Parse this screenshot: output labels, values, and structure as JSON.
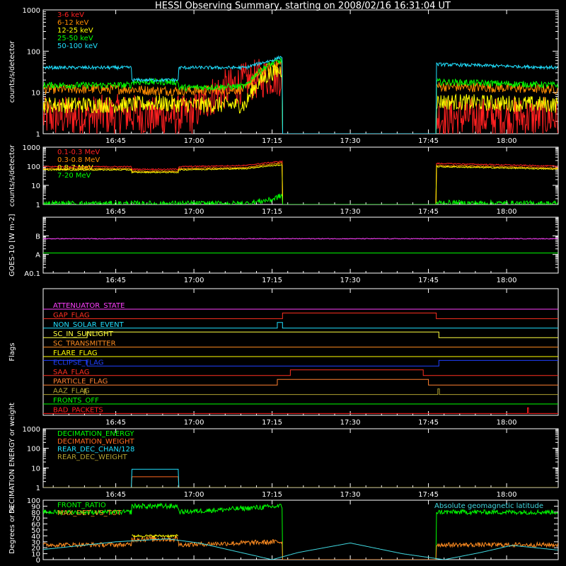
{
  "chart_data": {
    "type": "line",
    "title": "HESSI Observing Summary, starting on 2008/02/16 16:31:04 UT",
    "time_axis": {
      "start": "16:31:04",
      "end": "18:10:00",
      "tick_labels": [
        "16:45",
        "17:00",
        "17:15",
        "17:30",
        "17:45",
        "18:00"
      ],
      "tick_times_min": [
        45,
        60,
        75,
        90,
        105,
        120
      ]
    },
    "panels": [
      {
        "id": "rates-low",
        "type": "line",
        "ylabel": "counts/s/detector",
        "yscale": "log",
        "ylim": [
          1,
          1000
        ],
        "yticks": [
          "1",
          "10",
          "100",
          "1000"
        ],
        "series": [
          {
            "name": "3-6 keV",
            "color": "#ff2020",
            "points": [
              [
                31,
                2.5
              ],
              [
                48,
                3
              ],
              [
                52,
                2.5
              ],
              [
                60,
                3
              ],
              [
                75,
                25
              ],
              [
                77,
                25
              ],
              [
                77.1,
                1
              ],
              [
                106.5,
                1
              ],
              [
                106.6,
                2.5
              ],
              [
                130,
                2.5
              ]
            ],
            "noise": 0.5
          },
          {
            "name": "6-12 keV",
            "color": "#ff8c00",
            "points": [
              [
                31,
                12
              ],
              [
                48,
                12
              ],
              [
                52,
                11
              ],
              [
                60,
                11
              ],
              [
                70,
                12
              ],
              [
                75,
                45
              ],
              [
                77,
                50
              ],
              [
                77.1,
                1
              ],
              [
                106.5,
                1
              ],
              [
                106.6,
                14
              ],
              [
                130,
                12
              ]
            ],
            "noise": 0.12
          },
          {
            "name": "12-25 keV",
            "color": "#ffff00",
            "points": [
              [
                31,
                5
              ],
              [
                48,
                5
              ],
              [
                52,
                5.5
              ],
              [
                60,
                5
              ],
              [
                70,
                5
              ],
              [
                75,
                30
              ],
              [
                77,
                35
              ],
              [
                77.1,
                1
              ],
              [
                106.5,
                1
              ],
              [
                106.6,
                6
              ],
              [
                130,
                5
              ]
            ],
            "noise": 0.2
          },
          {
            "name": "25-50 keV",
            "color": "#00ff00",
            "points": [
              [
                31,
                15
              ],
              [
                48,
                15
              ],
              [
                48.1,
                18
              ],
              [
                57,
                18
              ],
              [
                57.1,
                13
              ],
              [
                70,
                14
              ],
              [
                75,
                50
              ],
              [
                77,
                60
              ],
              [
                77.1,
                1
              ],
              [
                106.5,
                1
              ],
              [
                106.6,
                18
              ],
              [
                130,
                15
              ]
            ],
            "noise": 0.08
          },
          {
            "name": "50-100 keV",
            "color": "#20e0ff",
            "points": [
              [
                31,
                40
              ],
              [
                48,
                40
              ],
              [
                48.1,
                20
              ],
              [
                57,
                20
              ],
              [
                57.1,
                40
              ],
              [
                70,
                40
              ],
              [
                75,
                60
              ],
              [
                77,
                75
              ],
              [
                77.1,
                1
              ],
              [
                106.5,
                1
              ],
              [
                106.6,
                48
              ],
              [
                130,
                40
              ]
            ],
            "noise": 0.04
          }
        ]
      },
      {
        "id": "rates-high",
        "type": "line",
        "ylabel": "counts/s/detector",
        "yscale": "log",
        "ylim": [
          1,
          1000
        ],
        "yticks": [
          "1",
          "10",
          "100",
          "1000"
        ],
        "series": [
          {
            "name": "0.1-0.3 MeV",
            "color": "#ff2020",
            "points": [
              [
                31,
                95
              ],
              [
                48,
                95
              ],
              [
                48.1,
                70
              ],
              [
                57,
                70
              ],
              [
                57.1,
                95
              ],
              [
                70,
                110
              ],
              [
                77,
                180
              ],
              [
                77.1,
                1
              ],
              [
                106.5,
                1
              ],
              [
                106.6,
                140
              ],
              [
                130,
                100
              ]
            ],
            "noise": 0.03
          },
          {
            "name": "0.3-0.8 MeV",
            "color": "#ff8c00",
            "points": [
              [
                31,
                75
              ],
              [
                48,
                75
              ],
              [
                48.1,
                55
              ],
              [
                57,
                55
              ],
              [
                57.1,
                75
              ],
              [
                70,
                85
              ],
              [
                77,
                150
              ],
              [
                77.1,
                1
              ],
              [
                106.5,
                1
              ],
              [
                106.6,
                110
              ],
              [
                130,
                80
              ]
            ],
            "noise": 0.03
          },
          {
            "name": "0.8-7 MeV",
            "color": "#ffff00",
            "points": [
              [
                31,
                65
              ],
              [
                48,
                65
              ],
              [
                48.1,
                48
              ],
              [
                57,
                48
              ],
              [
                57.1,
                65
              ],
              [
                70,
                75
              ],
              [
                77,
                120
              ],
              [
                77.1,
                1
              ],
              [
                106.5,
                1
              ],
              [
                106.6,
                95
              ],
              [
                130,
                70
              ]
            ],
            "noise": 0.03
          },
          {
            "name": "7-20 MeV",
            "color": "#00ff00",
            "points": [
              [
                31,
                1.1
              ],
              [
                70,
                1.1
              ],
              [
                75,
                1.8
              ],
              [
                77,
                3
              ],
              [
                77.1,
                1
              ],
              [
                106.5,
                1
              ],
              [
                106.6,
                1.2
              ],
              [
                130,
                1.1
              ]
            ],
            "noise": 0.15
          }
        ]
      },
      {
        "id": "goes",
        "type": "line",
        "ylabel": "GOES-10 [W m-2]",
        "yscale": "log",
        "ylim": [
          1e-09,
          1e-06
        ],
        "yticks": [
          "A0.1",
          "A",
          "B"
        ],
        "series": [
          {
            "name": "",
            "color": "#ff40ff",
            "points": [
              [
                31,
                7e-08
              ],
              [
                130,
                7e-08
              ]
            ],
            "noise": 0.02
          },
          {
            "name": "",
            "color": "#00ff00",
            "points": [
              [
                31,
                1.2e-08
              ],
              [
                130,
                1.2e-08
              ]
            ],
            "noise": 0
          }
        ]
      },
      {
        "id": "flags",
        "type": "flags",
        "ylabel": "Flags",
        "flags": [
          {
            "name": "ATTENUATOR_STATE",
            "color": "#ff40ff",
            "on": []
          },
          {
            "name": "GAP_FLAG",
            "color": "#ff3020",
            "on": [
              [
                77,
                106.5
              ]
            ]
          },
          {
            "name": "NON_SOLAR_EVENT",
            "color": "#20e0ff",
            "on": [
              [
                76,
                77
              ]
            ]
          },
          {
            "name": "SC_IN_SUNLIGHT",
            "color": "#ffff40",
            "on": [
              [
                39.5,
                107
              ]
            ]
          },
          {
            "name": "SC_TRANSMITTER",
            "color": "#ff8c20",
            "on": []
          },
          {
            "name": "FLARE_FLAG",
            "color": "#ffff00",
            "on": []
          },
          {
            "name": "ECLIPSE_FLAG",
            "color": "#2040ff",
            "on": [
              [
                31,
                39.5
              ],
              [
                107,
                130
              ]
            ]
          },
          {
            "name": "SAA_FLAG",
            "color": "#ff3020",
            "on": [
              [
                78.5,
                104
              ]
            ]
          },
          {
            "name": "PARTICLE_FLAG",
            "color": "#ff8030",
            "on": [
              [
                76,
                105
              ]
            ]
          },
          {
            "name": "AAZ_FLAG",
            "color": "#b0a030",
            "on": [
              [
                39,
                39.3
              ],
              [
                106.8,
                107.1
              ]
            ]
          },
          {
            "name": "FRONTS_OFF",
            "color": "#00ff00",
            "on": []
          },
          {
            "name": "BAD_PACKETS",
            "color": "#ff2020",
            "on": [
              [
                124,
                124.2
              ]
            ]
          }
        ]
      },
      {
        "id": "decimation",
        "type": "line",
        "ylabel": "DECIMATION ENERGY or weight",
        "yscale": "log",
        "ylim": [
          1,
          1000
        ],
        "yticks": [
          "1",
          "10",
          "100",
          "1000"
        ],
        "series": [
          {
            "name": "DECIMATION_ENERGY",
            "color": "#00ff00",
            "points": [
              [
                31,
                1
              ],
              [
                130,
                1
              ]
            ],
            "noise": 0
          },
          {
            "name": "DECIMATION_WEIGHT",
            "color": "#ff6a20",
            "points": [
              [
                31,
                1
              ],
              [
                48,
                1
              ],
              [
                48.1,
                3.5
              ],
              [
                57,
                3.5
              ],
              [
                57.1,
                1
              ],
              [
                130,
                1
              ]
            ],
            "noise": 0
          },
          {
            "name": "REAR_DEC_CHAN/128",
            "color": "#20e0ff",
            "points": [
              [
                31,
                1
              ],
              [
                48,
                1
              ],
              [
                48.1,
                8.5
              ],
              [
                57,
                8.5
              ],
              [
                57.1,
                1
              ],
              [
                130,
                1
              ]
            ],
            "noise": 0
          },
          {
            "name": "REAR_DEC_WEIGHT",
            "color": "#b0a030",
            "points": [
              [
                31,
                1
              ],
              [
                130,
                1
              ]
            ],
            "noise": 0
          }
        ]
      },
      {
        "id": "ratios",
        "type": "line",
        "ylabel": "Degrees or %",
        "yscale": "linear",
        "ylim": [
          0,
          100
        ],
        "yticks": [
          "0",
          "10",
          "20",
          "30",
          "40",
          "50",
          "60",
          "70",
          "80",
          "90",
          "100"
        ],
        "series": [
          {
            "name": "FRONT_RATIO",
            "color": "#00ff00",
            "points": [
              [
                31,
                80
              ],
              [
                48,
                80
              ],
              [
                48.1,
                90
              ],
              [
                57,
                90
              ],
              [
                57.1,
                80
              ],
              [
                77,
                90
              ],
              [
                77.1,
                0
              ],
              [
                106.5,
                0
              ],
              [
                106.6,
                80
              ],
              [
                130,
                80
              ]
            ],
            "noise": 0.05
          },
          {
            "name": "MAX_DET_VS_TOT",
            "color": "#ff8c20",
            "points": [
              [
                31,
                25
              ],
              [
                48,
                25
              ],
              [
                48.1,
                35
              ],
              [
                57,
                35
              ],
              [
                57.1,
                25
              ],
              [
                77,
                30
              ],
              [
                77.1,
                0
              ],
              [
                106.5,
                0
              ],
              [
                106.6,
                25
              ],
              [
                130,
                25
              ]
            ],
            "noise": 0.15
          },
          {
            "name": "",
            "color": "#ffff00",
            "points": [
              [
                48.1,
                40
              ],
              [
                57,
                40
              ]
            ],
            "noise": 0.05
          },
          {
            "name": "Absolute geomagnetic latitude",
            "color": "#40d8e0",
            "points": [
              [
                31,
                17
              ],
              [
                45,
                30
              ],
              [
                55,
                35
              ],
              [
                61,
                28
              ],
              [
                70,
                10
              ],
              [
                75,
                0
              ],
              [
                80,
                12
              ],
              [
                90,
                28
              ],
              [
                100,
                10
              ],
              [
                108,
                0
              ],
              [
                115,
                12
              ],
              [
                121,
                24
              ],
              [
                130,
                16
              ]
            ],
            "noise": 0
          }
        ]
      }
    ]
  }
}
